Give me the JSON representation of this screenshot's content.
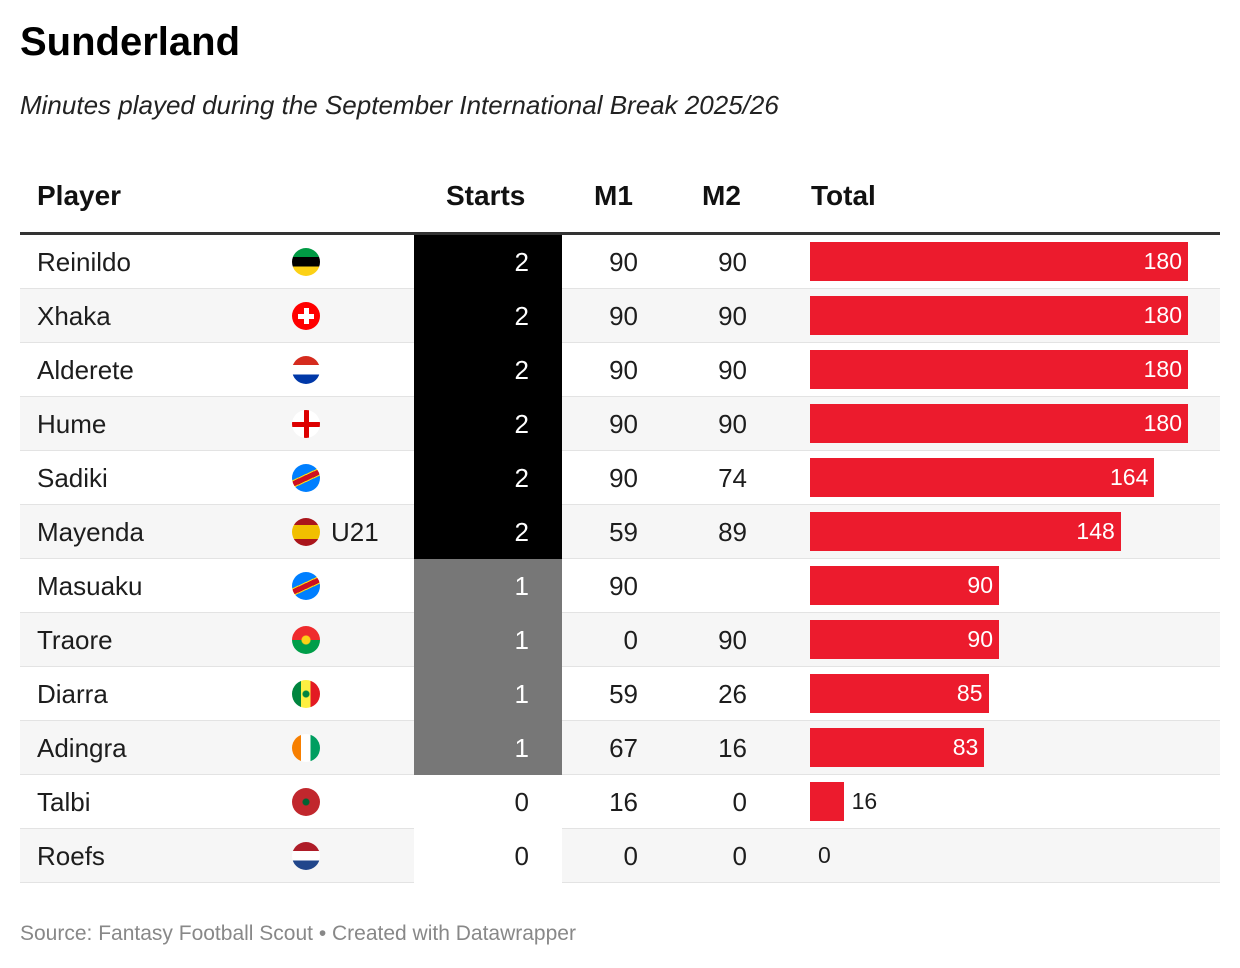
{
  "title": "Sunderland",
  "subtitle": "Minutes played during the September International Break 2025/26",
  "footer": "Source: Fantasy Football Scout • Created with Datawrapper",
  "colors": {
    "bar": "#ec1b2d",
    "starts2": "#000000",
    "starts1": "#777777",
    "starts0": "#ffffff"
  },
  "chart_data": {
    "type": "table",
    "columns": [
      "Player",
      "Starts",
      "M1",
      "M2",
      "Total"
    ],
    "xlim_total": [
      0,
      180
    ],
    "rows": [
      {
        "player": "Reinildo",
        "flag": "mozambique-flag",
        "note": "",
        "starts": "2",
        "m1": "90",
        "m2": "90",
        "total": 180
      },
      {
        "player": "Xhaka",
        "flag": "switzerland-flag",
        "note": "",
        "starts": "2",
        "m1": "90",
        "m2": "90",
        "total": 180
      },
      {
        "player": "Alderete",
        "flag": "paraguay-flag",
        "note": "",
        "starts": "2",
        "m1": "90",
        "m2": "90",
        "total": 180
      },
      {
        "player": "Hume",
        "flag": "northern-ireland-flag",
        "note": "",
        "starts": "2",
        "m1": "90",
        "m2": "90",
        "total": 180
      },
      {
        "player": "Sadiki",
        "flag": "dr-congo-flag",
        "note": "",
        "starts": "2",
        "m1": "90",
        "m2": "74",
        "total": 164
      },
      {
        "player": "Mayenda",
        "flag": "spain-flag",
        "note": "U21",
        "starts": "2",
        "m1": "59",
        "m2": "89",
        "total": 148
      },
      {
        "player": "Masuaku",
        "flag": "dr-congo-flag",
        "note": "",
        "starts": "1",
        "m1": "90",
        "m2": "",
        "total": 90
      },
      {
        "player": "Traore",
        "flag": "burkina-faso-flag",
        "note": "",
        "starts": "1",
        "m1": "0",
        "m2": "90",
        "total": 90
      },
      {
        "player": "Diarra",
        "flag": "senegal-flag",
        "note": "",
        "starts": "1",
        "m1": "59",
        "m2": "26",
        "total": 85
      },
      {
        "player": "Adingra",
        "flag": "ivory-coast-flag",
        "note": "",
        "starts": "1",
        "m1": "67",
        "m2": "16",
        "total": 83
      },
      {
        "player": "Talbi",
        "flag": "morocco-flag",
        "note": "",
        "starts": "0",
        "m1": "16",
        "m2": "0",
        "total": 16
      },
      {
        "player": "Roefs",
        "flag": "netherlands-flag",
        "note": "",
        "starts": "0",
        "m1": "0",
        "m2": "0",
        "total": 0
      }
    ]
  }
}
